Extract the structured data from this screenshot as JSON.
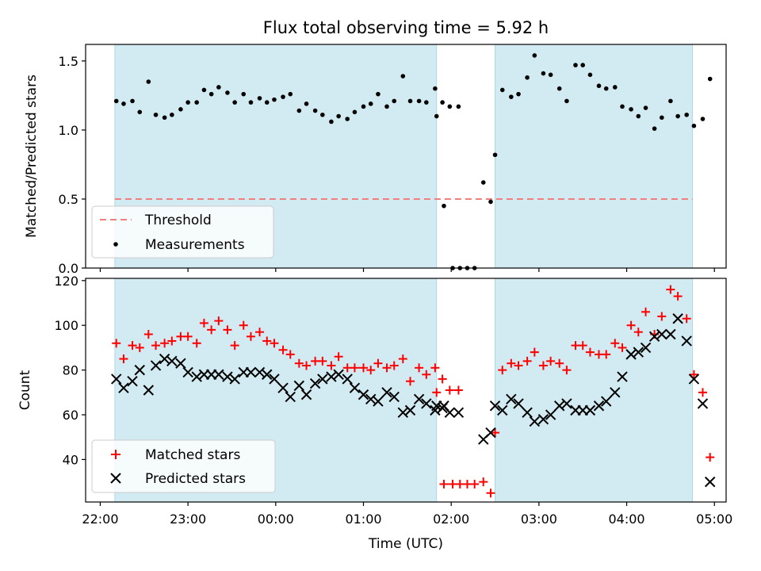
{
  "chart_data": [
    {
      "type": "scatter",
      "panel": "top",
      "title": "Flux total observing time = 5.92 h",
      "ylabel": "Matched/Predicted stars",
      "ylim": [
        0,
        1.62
      ],
      "yticks": [
        0.0,
        0.5,
        1.0,
        1.5
      ],
      "ytick_labels": [
        "0.0",
        "0.5",
        "1.0",
        "1.5"
      ],
      "shaded_regions": [
        [
          "22:10",
          "01:50"
        ],
        [
          "02:30",
          "04:45"
        ]
      ],
      "shade_color": "#add8e6",
      "threshold": {
        "name": "Threshold",
        "value": 0.5,
        "x_range": [
          "22:10",
          "04:45"
        ],
        "color": "#f08080"
      },
      "legend": {
        "location": "lower-left",
        "entries": [
          "Threshold",
          "Measurements"
        ]
      },
      "series": [
        {
          "name": "Measurements",
          "color": "#000000",
          "marker": "dot",
          "points": [
            [
              "22:11",
              1.21
            ],
            [
              "22:16",
              1.19
            ],
            [
              "22:22",
              1.21
            ],
            [
              "22:27",
              1.13
            ],
            [
              "22:33",
              1.35
            ],
            [
              "22:38",
              1.11
            ],
            [
              "22:44",
              1.09
            ],
            [
              "22:49",
              1.11
            ],
            [
              "22:55",
              1.15
            ],
            [
              "23:00",
              1.2
            ],
            [
              "23:06",
              1.2
            ],
            [
              "23:11",
              1.29
            ],
            [
              "23:16",
              1.26
            ],
            [
              "23:21",
              1.31
            ],
            [
              "23:27",
              1.27
            ],
            [
              "23:32",
              1.2
            ],
            [
              "23:38",
              1.26
            ],
            [
              "23:43",
              1.2
            ],
            [
              "23:49",
              1.23
            ],
            [
              "23:54",
              1.2
            ],
            [
              "23:59",
              1.22
            ],
            [
              "00:05",
              1.24
            ],
            [
              "00:10",
              1.26
            ],
            [
              "00:16",
              1.14
            ],
            [
              "00:21",
              1.19
            ],
            [
              "00:27",
              1.14
            ],
            [
              "00:32",
              1.11
            ],
            [
              "00:38",
              1.06
            ],
            [
              "00:43",
              1.1
            ],
            [
              "00:49",
              1.08
            ],
            [
              "00:54",
              1.13
            ],
            [
              "01:00",
              1.17
            ],
            [
              "01:05",
              1.19
            ],
            [
              "01:10",
              1.26
            ],
            [
              "01:16",
              1.17
            ],
            [
              "01:21",
              1.21
            ],
            [
              "01:27",
              1.39
            ],
            [
              "01:32",
              1.21
            ],
            [
              "01:38",
              1.21
            ],
            [
              "01:43",
              1.2
            ],
            [
              "01:49",
              1.3
            ],
            [
              "01:54",
              1.2
            ],
            [
              "01:59",
              1.17
            ],
            [
              "02:05",
              1.17
            ],
            [
              "01:50",
              1.1
            ],
            [
              "01:55",
              0.45
            ],
            [
              "02:01",
              0.0
            ],
            [
              "02:06",
              0.0
            ],
            [
              "02:11",
              0.0
            ],
            [
              "02:16",
              0.0
            ],
            [
              "02:22",
              0.62
            ],
            [
              "02:27",
              0.48
            ],
            [
              "02:30",
              0.82
            ],
            [
              "02:35",
              1.29
            ],
            [
              "02:41",
              1.24
            ],
            [
              "02:46",
              1.26
            ],
            [
              "02:52",
              1.38
            ],
            [
              "02:57",
              1.54
            ],
            [
              "03:03",
              1.41
            ],
            [
              "03:08",
              1.4
            ],
            [
              "03:14",
              1.3
            ],
            [
              "03:19",
              1.21
            ],
            [
              "03:25",
              1.47
            ],
            [
              "03:30",
              1.47
            ],
            [
              "03:35",
              1.4
            ],
            [
              "03:41",
              1.32
            ],
            [
              "03:46",
              1.3
            ],
            [
              "03:52",
              1.31
            ],
            [
              "03:57",
              1.17
            ],
            [
              "04:03",
              1.15
            ],
            [
              "04:08",
              1.1
            ],
            [
              "04:13",
              1.16
            ],
            [
              "04:19",
              1.01
            ],
            [
              "04:24",
              1.09
            ],
            [
              "04:30",
              1.21
            ],
            [
              "04:35",
              1.1
            ],
            [
              "04:41",
              1.11
            ],
            [
              "04:46",
              1.03
            ],
            [
              "04:52",
              1.08
            ],
            [
              "04:57",
              1.37
            ]
          ]
        }
      ]
    },
    {
      "type": "scatter",
      "panel": "bottom",
      "xlabel": "Time (UTC)",
      "ylabel": "Count",
      "ylim": [
        21,
        121
      ],
      "yticks": [
        40,
        60,
        80,
        100,
        120
      ],
      "ytick_labels": [
        "40",
        "60",
        "80",
        "100",
        "120"
      ],
      "xlim": [
        "21:50",
        "05:08"
      ],
      "xticks": [
        "22:00",
        "23:00",
        "00:00",
        "01:00",
        "02:00",
        "03:00",
        "04:00",
        "05:00"
      ],
      "xtick_labels": [
        "22:00",
        "23:00",
        "00:00",
        "01:00",
        "02:00",
        "03:00",
        "04:00",
        "05:00"
      ],
      "legend": {
        "location": "lower-left",
        "entries": [
          "Matched stars",
          "Predicted stars"
        ]
      },
      "series": [
        {
          "name": "Matched stars",
          "color": "#ff0000",
          "marker": "plus",
          "points": [
            [
              "22:11",
              92
            ],
            [
              "22:16",
              85
            ],
            [
              "22:22",
              91
            ],
            [
              "22:27",
              90
            ],
            [
              "22:33",
              96
            ],
            [
              "22:38",
              91
            ],
            [
              "22:44",
              92
            ],
            [
              "22:49",
              93
            ],
            [
              "22:55",
              95
            ],
            [
              "23:00",
              95
            ],
            [
              "23:06",
              92
            ],
            [
              "23:11",
              101
            ],
            [
              "23:16",
              98
            ],
            [
              "23:21",
              102
            ],
            [
              "23:27",
              98
            ],
            [
              "23:32",
              91
            ],
            [
              "23:38",
              100
            ],
            [
              "23:43",
              95
            ],
            [
              "23:49",
              97
            ],
            [
              "23:54",
              93
            ],
            [
              "23:59",
              92
            ],
            [
              "00:05",
              89
            ],
            [
              "00:10",
              87
            ],
            [
              "00:16",
              83
            ],
            [
              "00:21",
              82
            ],
            [
              "00:27",
              84
            ],
            [
              "00:32",
              84
            ],
            [
              "00:38",
              82
            ],
            [
              "00:43",
              86
            ],
            [
              "00:49",
              81
            ],
            [
              "00:54",
              81
            ],
            [
              "01:00",
              81
            ],
            [
              "01:05",
              80
            ],
            [
              "01:10",
              83
            ],
            [
              "01:16",
              81
            ],
            [
              "01:21",
              82
            ],
            [
              "01:27",
              85
            ],
            [
              "01:32",
              75
            ],
            [
              "01:38",
              81
            ],
            [
              "01:43",
              78
            ],
            [
              "01:49",
              81
            ],
            [
              "01:54",
              76
            ],
            [
              "01:59",
              71
            ],
            [
              "02:05",
              71
            ],
            [
              "01:50",
              70
            ],
            [
              "01:55",
              29
            ],
            [
              "02:01",
              29
            ],
            [
              "02:06",
              29
            ],
            [
              "02:11",
              29
            ],
            [
              "02:16",
              29
            ],
            [
              "02:22",
              30
            ],
            [
              "02:27",
              25
            ],
            [
              "02:30",
              52
            ],
            [
              "02:35",
              80
            ],
            [
              "02:41",
              83
            ],
            [
              "02:46",
              82
            ],
            [
              "02:52",
              84
            ],
            [
              "02:57",
              88
            ],
            [
              "03:03",
              82
            ],
            [
              "03:08",
              84
            ],
            [
              "03:14",
              83
            ],
            [
              "03:19",
              80
            ],
            [
              "03:25",
              91
            ],
            [
              "03:30",
              91
            ],
            [
              "03:35",
              88
            ],
            [
              "03:41",
              87
            ],
            [
              "03:46",
              87
            ],
            [
              "03:52",
              92
            ],
            [
              "03:57",
              90
            ],
            [
              "04:03",
              100
            ],
            [
              "04:08",
              97
            ],
            [
              "04:13",
              106
            ],
            [
              "04:19",
              96
            ],
            [
              "04:24",
              104
            ],
            [
              "04:30",
              116
            ],
            [
              "04:35",
              113
            ],
            [
              "04:41",
              103
            ],
            [
              "04:46",
              78
            ],
            [
              "04:52",
              70
            ],
            [
              "04:57",
              41
            ]
          ]
        },
        {
          "name": "Predicted stars",
          "color": "#000000",
          "marker": "x",
          "points": [
            [
              "22:11",
              76
            ],
            [
              "22:16",
              72
            ],
            [
              "22:22",
              75
            ],
            [
              "22:27",
              80
            ],
            [
              "22:33",
              71
            ],
            [
              "22:38",
              82
            ],
            [
              "22:44",
              85
            ],
            [
              "22:49",
              84
            ],
            [
              "22:55",
              83
            ],
            [
              "23:00",
              79
            ],
            [
              "23:06",
              77
            ],
            [
              "23:11",
              78
            ],
            [
              "23:16",
              78
            ],
            [
              "23:21",
              78
            ],
            [
              "23:27",
              77
            ],
            [
              "23:32",
              76
            ],
            [
              "23:38",
              79
            ],
            [
              "23:43",
              79
            ],
            [
              "23:49",
              79
            ],
            [
              "23:54",
              78
            ],
            [
              "23:59",
              76
            ],
            [
              "00:05",
              72
            ],
            [
              "00:10",
              68
            ],
            [
              "00:16",
              73
            ],
            [
              "00:21",
              69
            ],
            [
              "00:27",
              74
            ],
            [
              "00:32",
              76
            ],
            [
              "00:38",
              77
            ],
            [
              "00:43",
              78
            ],
            [
              "00:49",
              76
            ],
            [
              "00:54",
              72
            ],
            [
              "01:00",
              69
            ],
            [
              "01:05",
              67
            ],
            [
              "01:10",
              66
            ],
            [
              "01:16",
              70
            ],
            [
              "01:21",
              68
            ],
            [
              "01:27",
              61
            ],
            [
              "01:32",
              62
            ],
            [
              "01:38",
              67
            ],
            [
              "01:43",
              65
            ],
            [
              "01:49",
              62
            ],
            [
              "01:54",
              63
            ],
            [
              "01:59",
              61
            ],
            [
              "02:05",
              61
            ],
            [
              "01:50",
              64
            ],
            [
              "01:55",
              64
            ],
            [
              "02:22",
              49
            ],
            [
              "02:27",
              52
            ],
            [
              "02:30",
              64
            ],
            [
              "02:35",
              62
            ],
            [
              "02:41",
              67
            ],
            [
              "02:46",
              65
            ],
            [
              "02:52",
              61
            ],
            [
              "02:57",
              57
            ],
            [
              "03:03",
              58
            ],
            [
              "03:08",
              60
            ],
            [
              "03:14",
              64
            ],
            [
              "03:19",
              65
            ],
            [
              "03:25",
              62
            ],
            [
              "03:30",
              62
            ],
            [
              "03:35",
              62
            ],
            [
              "03:41",
              64
            ],
            [
              "03:46",
              66
            ],
            [
              "03:52",
              70
            ],
            [
              "03:57",
              77
            ],
            [
              "04:03",
              87
            ],
            [
              "04:08",
              88
            ],
            [
              "04:13",
              90
            ],
            [
              "04:19",
              95
            ],
            [
              "04:24",
              96
            ],
            [
              "04:30",
              96
            ],
            [
              "04:35",
              103
            ],
            [
              "04:41",
              93
            ],
            [
              "04:46",
              76
            ],
            [
              "04:52",
              65
            ],
            [
              "04:57",
              30
            ]
          ]
        }
      ]
    }
  ]
}
